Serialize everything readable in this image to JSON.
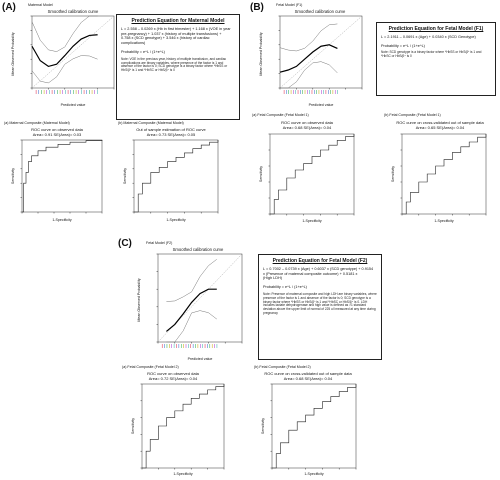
{
  "panels": {
    "A": {
      "letter": "(A)",
      "label": "Maternal Model"
    },
    "B": {
      "letter": "(B)",
      "label": "Fetal Model (F1)"
    },
    "C": {
      "letter": "(C)",
      "label": "Fetal Model (F2)"
    }
  },
  "calib": {
    "A": {
      "title": "Smoothed calibration curve",
      "xlabel": "Predicted value",
      "ylabel": "Mean Observed Probability"
    },
    "B": {
      "title": "Smoothed calibration curve",
      "xlabel": "Predicted value",
      "ylabel": "Mean Observed Probability"
    },
    "C": {
      "title": "Smoothed calibration curve",
      "xlabel": "Predicted value",
      "ylabel": "Mean Observed Probability"
    }
  },
  "equations": {
    "A": {
      "heading": "Prediction Equation for Maternal Model",
      "lines": [
        "L = 2.558 – 0.0269 x (Hb in first trimester) + 1.168 x (VOE in year",
        "pre-pregnancy) + 1.037 x (history of multiple transfusions) +",
        "0.758 x (SCD genotype) + 3.546 x (history of cardiac",
        "complications)"
      ],
      "prob": "Probability = e^L / (1+e^L)",
      "note": "Note: VOE in the previous year, history of multiple transfusion, and cardiac complications are binary variables, where presence of the factor is 1 and absence of the factor is 0; SCD genotype is a binary factor where *HbSS or HbS/β⁰ is 1 and *HbSC or HbS/β⁺ is 0"
    },
    "B": {
      "heading": "Prediction Equation for Fetal Model (F1)",
      "lines": [
        "L = 2.1911 – 0.0691 x (Age) + 0.0340 x (SCD Genotype)"
      ],
      "prob": "Probability = e^L / (1+e^L)",
      "note": "Note: SCD genotype is a binary factor where *HbSS or HbS/β⁰ is 1 and *HbSC or HbS/β⁺ is 0"
    },
    "C": {
      "heading": "Prediction Equation for Fetal Model (F2)",
      "lines": [
        "L = 0.7002 – 0.0739 x (Age) + 0.6037 x (SCD genotype) + 0.9154",
        "x (Presence of maternal composite outcome) + 0.5181 x",
        "(High LDH)"
      ],
      "prob": "Probability = e^L / (1+e^L)",
      "note": "Note: Presence of maternal composite and high LDH are binary variables, where presence of the factor is 1 and absence of the factor is 0; SCD genotype is a binary factor where *HbSS or HbS/β⁰ is 1 and *HbSC or HbS/β⁺ is 0. LDH includes lactate dehydrogenase and high value is defined as >1 standard deviation above the upper limit of normal of 225 u/l measured at any time during pregnancy"
    }
  },
  "roc": {
    "A1": {
      "sub": "(a) Maternal Composite (Maternal Model)",
      "title": "ROC curve on observed data",
      "area": "Area= 0.91 SE(Area)= 0.03",
      "xlabel": "1-Specificity",
      "ylabel": "Sensitivity"
    },
    "A2": {
      "sub": "(b) Maternal Composite (Maternal Model)",
      "title": "Out of sample estimation of ROC curve",
      "area": "Area= 0.73 SE(Area)= 0.05",
      "xlabel": "1-Specificity",
      "ylabel": "Sensitivity"
    },
    "B1": {
      "sub": "(a) Fetal Composite (Fetal Model 1)",
      "title": "ROC curve on observed data",
      "area": "Area= 0.68 SE(Area)= 0.04",
      "xlabel": "1-Specificity",
      "ylabel": "Sensitivity"
    },
    "B2": {
      "sub": "(b) Fetal Composite (Fetal Model 1)",
      "title": "ROC curve on cross-validated out of sample data",
      "area": "Area= 0.65 SE(Area)= 0.04",
      "xlabel": "1-Specificity",
      "ylabel": "Sensitivity"
    },
    "C1": {
      "sub": "(a) Fetal Composite (Fetal Model 2)",
      "title": "ROC curve on observed data",
      "area": "Area= 0.72 SE(Area)= 0.04",
      "xlabel": "1-Specificity",
      "ylabel": "Sensitivity"
    },
    "C2": {
      "sub": "(b) Fetal Composite (Fetal Model 2)",
      "title": "ROC curve on cross-validated out of sample data",
      "area": "Area= 0.68 SE(Area)= 0.04",
      "xlabel": "1-Specificity",
      "ylabel": "Sensitivity"
    }
  },
  "chart_data": [
    {
      "id": "calA",
      "type": "line",
      "title": "Smoothed calibration curve",
      "xlabel": "Predicted value",
      "ylabel": "Mean Observed Probability",
      "xlim": [
        0,
        1
      ],
      "ylim": [
        0,
        1
      ],
      "x": [
        0.0,
        0.1,
        0.2,
        0.3,
        0.4,
        0.5,
        0.6,
        0.7,
        0.8
      ],
      "series": [
        {
          "values": [
            0.58,
            0.38,
            0.3,
            0.33,
            0.45,
            0.58,
            0.68,
            0.73,
            0.74
          ]
        }
      ]
    },
    {
      "id": "calB",
      "type": "line",
      "title": "Smoothed calibration curve",
      "xlabel": "Predicted value",
      "ylabel": "Mean Observed Probability",
      "xlim": [
        0,
        1
      ],
      "ylim": [
        0,
        1
      ],
      "x": [
        0.0,
        0.1,
        0.2,
        0.3,
        0.4,
        0.5,
        0.6,
        0.7
      ],
      "series": [
        {
          "values": [
            0.22,
            0.25,
            0.3,
            0.4,
            0.5,
            0.58,
            0.6,
            0.55
          ]
        }
      ]
    },
    {
      "id": "calC",
      "type": "line",
      "title": "Smoothed calibration curve",
      "xlabel": "Predicted value",
      "ylabel": "Mean Observed Probability",
      "xlim": [
        0,
        1
      ],
      "ylim": [
        0,
        1
      ],
      "x": [
        0.1,
        0.2,
        0.3,
        0.4,
        0.5,
        0.6,
        0.7
      ],
      "series": [
        {
          "values": [
            0.12,
            0.2,
            0.32,
            0.45,
            0.55,
            0.6,
            0.6
          ]
        }
      ]
    },
    {
      "id": "rocA1",
      "type": "line",
      "title": "ROC curve on observed data",
      "xlim": [
        0,
        1
      ],
      "ylim": [
        0,
        1
      ],
      "x": [
        0,
        0.02,
        0.05,
        0.08,
        0.12,
        0.2,
        0.3,
        0.45,
        0.6,
        0.8,
        1
      ],
      "series": [
        {
          "values": [
            0,
            0.4,
            0.55,
            0.7,
            0.78,
            0.85,
            0.9,
            0.94,
            0.97,
            0.99,
            1
          ]
        }
      ]
    },
    {
      "id": "rocA2",
      "type": "line",
      "title": "Out of sample estimation of ROC curve",
      "xlim": [
        0,
        1
      ],
      "ylim": [
        0,
        1
      ],
      "x": [
        0,
        0.05,
        0.1,
        0.2,
        0.3,
        0.4,
        0.5,
        0.6,
        0.7,
        0.8,
        0.9,
        1
      ],
      "series": [
        {
          "values": [
            0,
            0.25,
            0.4,
            0.55,
            0.62,
            0.7,
            0.76,
            0.82,
            0.88,
            0.93,
            0.97,
            1
          ]
        }
      ]
    },
    {
      "id": "rocB1",
      "type": "line",
      "title": "ROC curve on observed data",
      "xlim": [
        0,
        1
      ],
      "ylim": [
        0,
        1
      ],
      "x": [
        0,
        0.05,
        0.1,
        0.2,
        0.3,
        0.4,
        0.5,
        0.6,
        0.7,
        0.8,
        0.9,
        1
      ],
      "series": [
        {
          "values": [
            0,
            0.18,
            0.3,
            0.45,
            0.55,
            0.63,
            0.72,
            0.8,
            0.86,
            0.92,
            0.97,
            1
          ]
        }
      ]
    },
    {
      "id": "rocB2",
      "type": "line",
      "title": "ROC curve on cross-validated out of sample data",
      "xlim": [
        0,
        1
      ],
      "ylim": [
        0,
        1
      ],
      "x": [
        0,
        0.05,
        0.1,
        0.2,
        0.3,
        0.4,
        0.5,
        0.6,
        0.7,
        0.8,
        0.9,
        1
      ],
      "series": [
        {
          "values": [
            0,
            0.15,
            0.27,
            0.4,
            0.5,
            0.6,
            0.68,
            0.77,
            0.84,
            0.9,
            0.96,
            1
          ]
        }
      ]
    },
    {
      "id": "rocC1",
      "type": "line",
      "title": "ROC curve on observed data",
      "xlim": [
        0,
        1
      ],
      "ylim": [
        0,
        1
      ],
      "x": [
        0,
        0.05,
        0.1,
        0.2,
        0.3,
        0.4,
        0.5,
        0.6,
        0.7,
        0.8,
        0.9,
        1
      ],
      "series": [
        {
          "values": [
            0,
            0.2,
            0.34,
            0.5,
            0.6,
            0.68,
            0.76,
            0.83,
            0.88,
            0.93,
            0.97,
            1
          ]
        }
      ]
    },
    {
      "id": "rocC2",
      "type": "line",
      "title": "ROC curve on cross-validated out of sample data",
      "xlim": [
        0,
        1
      ],
      "ylim": [
        0,
        1
      ],
      "x": [
        0,
        0.05,
        0.1,
        0.2,
        0.3,
        0.4,
        0.5,
        0.6,
        0.7,
        0.8,
        0.9,
        1
      ],
      "series": [
        {
          "values": [
            0,
            0.17,
            0.3,
            0.45,
            0.55,
            0.63,
            0.71,
            0.79,
            0.85,
            0.91,
            0.96,
            1
          ]
        }
      ]
    }
  ]
}
